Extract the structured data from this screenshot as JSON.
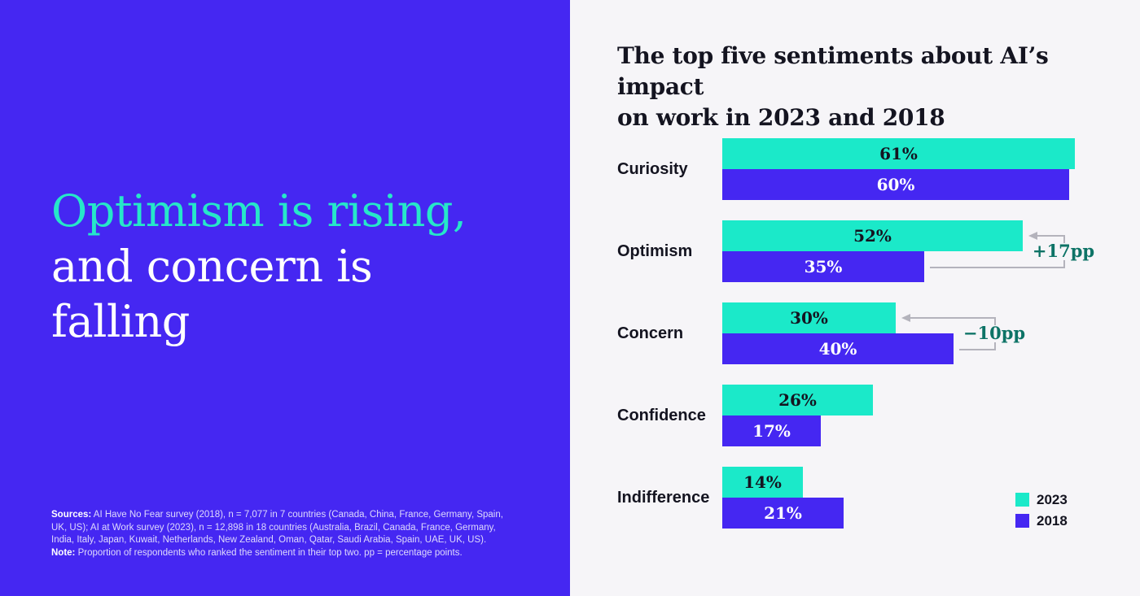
{
  "colors": {
    "panel_purple": "#4527f2",
    "teal_2023": "#1be9c9",
    "purple_2018": "#4527f2",
    "headline_teal": "#26e7c9",
    "right_background": "#f6f5f8",
    "ink": "#141420",
    "annotation_green": "#0d7366",
    "connector_gray": "#b4b3bc"
  },
  "left_panel": {
    "headline": {
      "lines": [
        {
          "text": "Optimism is rising,",
          "color": "#26e7c9"
        },
        {
          "text": "and concern is",
          "color": "#ffffff"
        },
        {
          "text": "falling",
          "color": "#ffffff"
        }
      ]
    },
    "sources_label": "Sources:",
    "sources_text": " AI Have No Fear survey (2018), n = 7,077 in 7 countries (Canada, China, France, Germany, Spain, UK, US); AI at Work survey (2023), n = 12,898 in 18 countries (Australia, Brazil, Canada, France, Germany, India, Italy, Japan, Kuwait, Netherlands, New Zealand, Oman, Qatar, Saudi Arabia, Spain, UAE, UK, US).",
    "note_label": "Note:",
    "note_text": " Proportion of respondents who ranked the sentiment in their top two. pp = percentage points."
  },
  "right_panel": {
    "title_lines": [
      "The top five sentiments about AI’s impact",
      "on work in 2023 and 2018"
    ]
  },
  "chart_data": {
    "type": "bar",
    "orientation": "horizontal",
    "title": "The top five sentiments about AI’s impact on work in 2023 and 2018",
    "categories": [
      "Curiosity",
      "Optimism",
      "Concern",
      "Confidence",
      "Indifference"
    ],
    "series": [
      {
        "name": "2023",
        "color": "#1be9c9",
        "values": [
          61,
          52,
          30,
          26,
          14
        ]
      },
      {
        "name": "2018",
        "color": "#4527f2",
        "values": [
          60,
          35,
          40,
          17,
          21
        ]
      }
    ],
    "value_suffix": "%",
    "annotations": [
      {
        "category": "Optimism",
        "text": "+17pp"
      },
      {
        "category": "Concern",
        "text": "−10pp"
      }
    ],
    "legend": [
      "2023",
      "2018"
    ],
    "legend_position": "bottom-right",
    "xlim": [
      0,
      65
    ],
    "grid": false
  }
}
